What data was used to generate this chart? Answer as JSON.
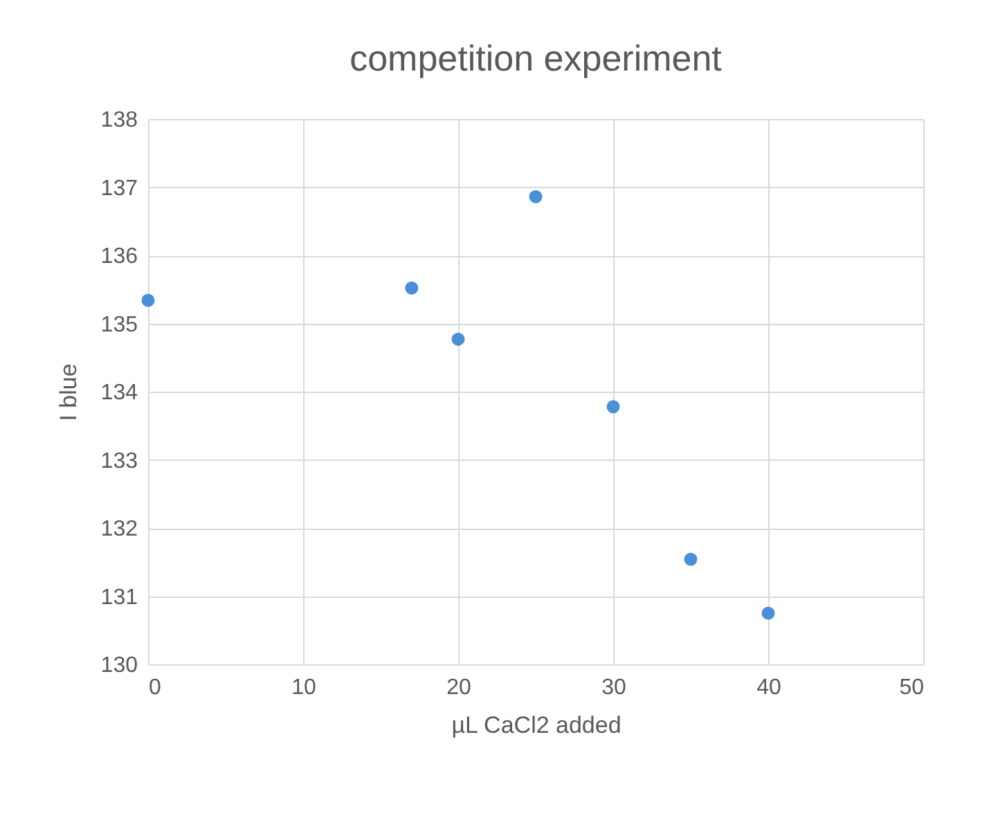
{
  "chart_data": {
    "type": "scatter",
    "title": "competition experiment",
    "xlabel": "µL CaCl2 added",
    "ylabel": "I blue",
    "x": [
      0,
      17,
      20,
      25,
      30,
      35,
      40
    ],
    "series": [
      {
        "color": "#4a90d9",
        "values": [
          135.34,
          135.52,
          134.77,
          136.86,
          133.78,
          131.54,
          130.75
        ]
      }
    ],
    "xlim": [
      0,
      50
    ],
    "xticks": [
      0,
      10,
      20,
      30,
      40,
      50
    ],
    "ylim": [
      130,
      138
    ],
    "yticks": [
      130,
      131,
      132,
      133,
      134,
      135,
      136,
      137,
      138
    ],
    "grid": true,
    "marker": "circle",
    "legend": false
  }
}
